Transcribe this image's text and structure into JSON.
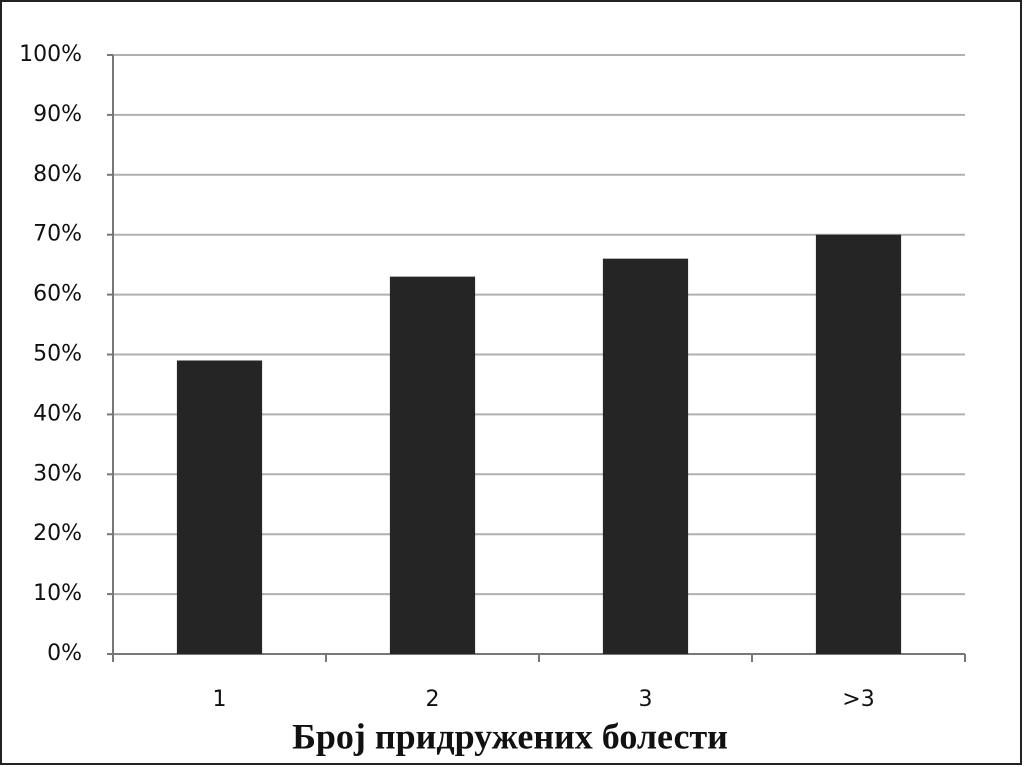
{
  "chart_data": {
    "type": "bar",
    "x_label": "Број придружених болести",
    "categories": [
      "1",
      "2",
      "3",
      ">3"
    ],
    "values": [
      49,
      63,
      66,
      70
    ],
    "color": "#252525",
    "ylim": [
      0,
      100
    ],
    "yticks": [
      {
        "value": 0,
        "label": "0%"
      },
      {
        "value": 10,
        "label": "10%"
      },
      {
        "value": 20,
        "label": "20%"
      },
      {
        "value": 30,
        "label": "30%"
      },
      {
        "value": 40,
        "label": "40%"
      },
      {
        "value": 50,
        "label": "50%"
      },
      {
        "value": 60,
        "label": "60%"
      },
      {
        "value": 70,
        "label": "70%"
      },
      {
        "value": 80,
        "label": "80%"
      },
      {
        "value": 90,
        "label": "90%"
      },
      {
        "value": 100,
        "label": "100%"
      }
    ],
    "grid": true
  }
}
